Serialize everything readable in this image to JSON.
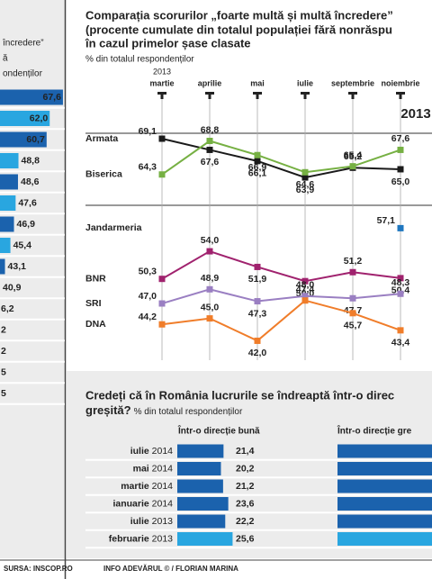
{
  "chart_data": [
    {
      "type": "bar",
      "orientation": "horizontal",
      "text_lines": [
        "încredere”",
        "ă",
        "ondenților"
      ],
      "values": [
        67.6,
        62.0,
        60.7,
        48.8,
        48.6,
        47.6,
        46.9,
        45.4,
        43.1,
        40.9
      ],
      "value_labels": [
        "67,6",
        "62,0",
        "60,7",
        "48,8",
        "48,6",
        "47,6",
        "46,9",
        "45,4",
        "43,1",
        "40,9"
      ],
      "colors": [
        "#1b62ad",
        "#29a6e0",
        "#1b62ad",
        "#29a6e0",
        "#1b62ad",
        "#29a6e0",
        "#1b62ad",
        "#29a6e0",
        "#1b62ad",
        "#29a6e0"
      ],
      "truncated_labels": [
        "6,2",
        "2",
        "2",
        "5",
        "5"
      ],
      "xlim": [
        41,
        68
      ],
      "source": "SURSA: INSCOP.RO"
    },
    {
      "type": "line",
      "title": [
        "Comparația scorurilor „foarte multă și multă încredere”",
        "(procente cumulate din totalul populației fără nonrăspu",
        "în cazul primelor șase clasate"
      ],
      "subtitle": "% din totalul respondenților",
      "year_label": "2013",
      "year_marker": "2013",
      "categories": [
        "martie",
        "aprilie",
        "mai",
        "iulie",
        "septembrie",
        "noiembrie"
      ],
      "ylim": [
        40,
        72
      ],
      "series": [
        {
          "name": "Armata",
          "color": "#1a1a1a",
          "values": [
            69.1,
            67.6,
            66.1,
            63.9,
            65.2,
            65.0
          ],
          "value_labels": [
            "69,1",
            "67,6",
            "66,1",
            "63,9",
            "65,2",
            "65,0"
          ]
        },
        {
          "name": "Biserica",
          "color": "#76b043",
          "values": [
            64.3,
            68.8,
            66.9,
            64.6,
            65.4,
            67.6
          ],
          "value_labels": [
            "64,3",
            "68,8",
            "66,9",
            "64,6",
            "65,4",
            "67,6"
          ]
        },
        {
          "name": "Jandarmeria",
          "color": "#1f77c0",
          "values": [
            null,
            null,
            null,
            null,
            null,
            57.1
          ],
          "value_labels": [
            null,
            null,
            null,
            null,
            null,
            "57,1"
          ]
        },
        {
          "name": "BNR",
          "color": "#a0226e",
          "values": [
            50.3,
            54.0,
            51.9,
            50.0,
            51.2,
            50.4
          ],
          "value_labels": [
            "50,3",
            "54,0",
            "51,9",
            "50,0",
            "51,2",
            "50,4"
          ]
        },
        {
          "name": "SRI",
          "color": "#9a7fc2",
          "values": [
            47.0,
            48.9,
            47.3,
            48.0,
            47.7,
            48.3
          ],
          "value_labels": [
            "47,0",
            "48,9",
            "47,3",
            "48,0",
            "47,7",
            "48,3"
          ]
        },
        {
          "name": "DNA",
          "color": "#f07d2a",
          "values": [
            44.2,
            45.0,
            42.0,
            47.4,
            45.7,
            43.4
          ],
          "value_labels": [
            "44,2",
            "45,0",
            "42,0",
            "47,4",
            "45,7",
            "43,4"
          ]
        }
      ]
    },
    {
      "type": "bar",
      "orientation": "horizontal",
      "title": [
        "Credeți că în România lucrurile se îndreaptă într-o direc",
        "greșită?"
      ],
      "subtitle": "% din totalul respondenților",
      "column_headers": [
        "Într-o direcție bună",
        "Într-o direcție gre"
      ],
      "categories": [
        "iulie",
        "mai",
        "martie",
        "ianuarie",
        "iulie",
        "februarie"
      ],
      "category_years": [
        "2014",
        "2014",
        "2014",
        "2014",
        "2013",
        "2013"
      ],
      "values": [
        21.4,
        20.2,
        21.2,
        23.6,
        22.2,
        25.6
      ],
      "value_labels": [
        "21,4",
        "20,2",
        "21,2",
        "23,6",
        "22,2",
        "25,6"
      ],
      "colors": [
        "#1b62ad",
        "#1b62ad",
        "#1b62ad",
        "#1b62ad",
        "#1b62ad",
        "#29a6e0"
      ],
      "xlim": [
        0,
        100
      ],
      "credit": "INFO ADEVĂRUL © / FLORIAN MARINA"
    }
  ]
}
